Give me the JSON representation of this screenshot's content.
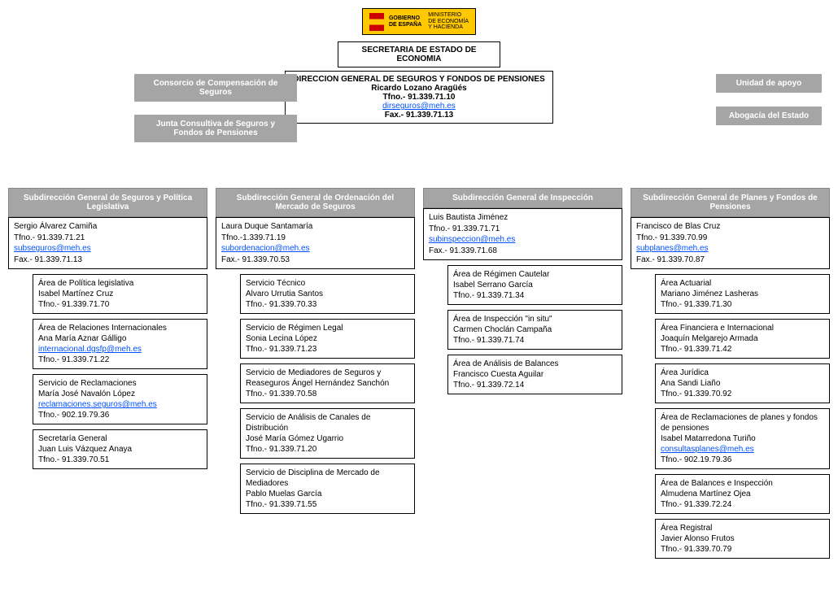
{
  "logo": {
    "l1": "GOBIERNO",
    "l2": "DE ESPAÑA",
    "l3": "MINISTERIO",
    "l4": "DE ECONOMÍA",
    "l5": "Y HACIENDA"
  },
  "secretaria": "SECRETARIA DE ESTADO DE ECONOMIA",
  "direccion": {
    "title": "DIRECCION GENERAL DE SEGUROS Y FONDOS DE PENSIONES",
    "name": "Ricardo Lozano Aragüés",
    "tfno": "Tfno.- 91.339.71.10",
    "email": "dirseguros@meh.es",
    "fax": "Fax.- 91.339.71.13"
  },
  "leftGrey1": "Consorcio de Compensación de Seguros",
  "leftGrey2": "Junta Consultiva de Seguros y Fondos de Pensiones",
  "rightGrey1": "Unidad de apoyo",
  "rightGrey2": "Abogacía del Estado",
  "cols": [
    {
      "header": "Subdirección General de Seguros y Política Legislativa",
      "lead": {
        "name": "Sergio Álvarez Camiña",
        "tfno": "Tfno.- 91.339.71.21",
        "email": "subseguros@meh.es",
        "fax": "Fax.- 91.339.71.13"
      },
      "areas": [
        {
          "l1": "Área de Política legislativa",
          "l2": "Isabel Martínez Cruz",
          "l3": "Tfno.- 91.339.71.70"
        },
        {
          "l1": "Área de Relaciones Internacionales",
          "l2": "Ana María Aznar Gálligo",
          "l3": "Tfno.- 91.339.71.22",
          "email": "internacional.dgsfp@meh.es"
        },
        {
          "l1": "Servicio de Reclamaciones",
          "l2": "María José Navalón López",
          "l3": "Tfno.- 902.19.79.36",
          "email": "reclamaciones.seguros@meh.es"
        },
        {
          "l1": "Secretaría General",
          "l2": "Juan Luis Vázquez Anaya",
          "l3": "Tfno.- 91.339.70.51"
        }
      ]
    },
    {
      "header": "Subdirección General de Ordenación del Mercado de Seguros",
      "lead": {
        "name": "Laura Duque Santamaría",
        "tfno": "Tfno.-1.339.71.19",
        "email": "subordenacion@meh.es",
        "fax": "Fax.- 91.339.70.53"
      },
      "areas": [
        {
          "l1": "Servicio Técnico",
          "l2": "Alvaro Urrutia Santos",
          "l3": "Tfno.- 91.339.70.33"
        },
        {
          "l1": "Servicio de Régimen Legal",
          "l2": "Sonia Lecina López",
          "l3": "Tfno.- 91.339.71.23"
        },
        {
          "l1": "Servicio de Mediadores de Seguros y Reaseguros  Ángel Hernández Sanchón",
          "l3": "Tfno.- 91.339.70.58"
        },
        {
          "l1": "Servicio de Análisis de Canales de Distribución",
          "l2": "José María Gómez Ugarrio",
          "l3": "Tfno.- 91.339.71.20"
        },
        {
          "l1": "Servicio de Disciplina de Mercado de Mediadores",
          "l2": "Pablo Muelas García",
          "l3": "Tfno.- 91.339.71.55"
        }
      ]
    },
    {
      "header": "Subdirección General de Inspección",
      "lead": {
        "name": " Luis Bautista Jiménez",
        "tfno": "Tfno.- 91.339.71.71",
        "email": "subinspeccion@meh.es",
        "fax": "Fax.- 91.339.71.68"
      },
      "areas": [
        {
          "l1": "Área de Régimen Cautelar",
          "l2": "Isabel Serrano García",
          "l3": "Tfno.- 91.339.71.34"
        },
        {
          "l1": "Área de Inspección \"in situ\"",
          "l2": "Carmen Choclán Campaña",
          "l3": "Tfno.- 91.339.71.74"
        },
        {
          "l1": "Área de Análisis de Balances",
          "l2": "Francisco Cuesta Aguilar",
          "l3": "Tfno.- 91.339.72.14"
        }
      ]
    },
    {
      "header": "Subdirección General de Planes y Fondos de Pensiones",
      "lead": {
        "name": "Francisco de Blas Cruz",
        "tfno": "Tfno.- 91.339.70.99",
        "email": "subplanes@meh.es",
        "fax": "Fax.- 91.339.70.87"
      },
      "areas": [
        {
          "l1": "Área Actuarial",
          "l2": "Mariano Jiménez Lasheras",
          "l3": "Tfno.- 91.339.71.30"
        },
        {
          "l1": "Área Financiera e Internacional",
          "l2": "Joaquín Melgarejo Armada",
          "l3": "Tfno.- 91.339.71.42"
        },
        {
          "l1": "Área Jurídica",
          "l2": "Ana Sandi Liaño",
          "l3": "Tfno.- 91.339.70.92"
        },
        {
          "l1": "Área de Reclamaciones de planes y fondos de pensiones",
          "l2": "Isabel Matarredona Turiño",
          "email": "consultasplanes@meh.es",
          "l3": "Tfno.- 902.19.79.36"
        },
        {
          "l1": "Área de Balances e Inspección",
          "l2": "Almudena Martínez Ojea",
          "l3": "Tfno.- 91.339.72.24"
        },
        {
          "l1": "Área Registral",
          "l2": "Javier  Alonso Frutos",
          "l3": "Tfno.- 91.339.70.79"
        }
      ]
    }
  ]
}
